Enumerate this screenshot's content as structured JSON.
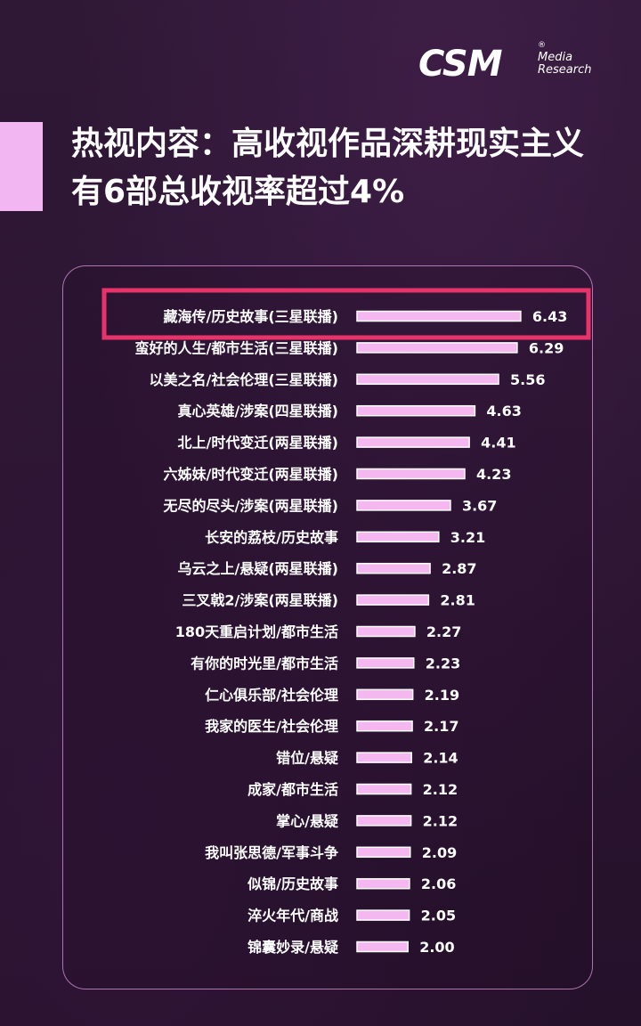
{
  "logo": {
    "main": "CSM",
    "sub_line1": "Media",
    "sub_line2": "Research",
    "reg": "®"
  },
  "title": {
    "line1": "热视内容：高收视作品深耕现实主义",
    "line2": "有6部总收视率超过4%"
  },
  "colors": {
    "bar_fill": "#f5b7f0",
    "bar_stroke": "#ffffff",
    "highlight": "#e8336a",
    "accent": "#f2b7f2"
  },
  "chart_data": {
    "type": "bar",
    "orientation": "horizontal",
    "highlighted_index": 0,
    "categories": [
      "藏海传/历史故事(三星联播)",
      "蛮好的人生/都市生活(三星联播)",
      "以美之名/社会伦理(三星联播)",
      "真心英雄/涉案(四星联播)",
      "北上/时代变迁(两星联播)",
      "六姊妹/时代变迁(两星联播)",
      "无尽的尽头/涉案(两星联播)",
      "长安的荔枝/历史故事",
      "乌云之上/悬疑(两星联播)",
      "三叉戟2/涉案(两星联播)",
      "180天重启计划/都市生活",
      "有你的时光里/都市生活",
      "仁心俱乐部/社会伦理",
      "我家的医生/社会伦理",
      "错位/悬疑",
      "成家/都市生活",
      "掌心/悬疑",
      "我叫张思德/军事斗争",
      "似锦/历史故事",
      "淬火年代/商战",
      "锦囊妙录/悬疑"
    ],
    "values": [
      6.43,
      6.29,
      5.56,
      4.63,
      4.41,
      4.23,
      3.67,
      3.21,
      2.87,
      2.81,
      2.27,
      2.23,
      2.19,
      2.17,
      2.14,
      2.12,
      2.12,
      2.09,
      2.06,
      2.05,
      2.0
    ],
    "value_labels": [
      "6.43",
      "6.29",
      "5.56",
      "4.63",
      "4.41",
      "4.23",
      "3.67",
      "3.21",
      "2.87",
      "2.81",
      "2.27",
      "2.23",
      "2.19",
      "2.17",
      "2.14",
      "2.12",
      "2.12",
      "2.09",
      "2.06",
      "2.05",
      "2.00"
    ]
  }
}
